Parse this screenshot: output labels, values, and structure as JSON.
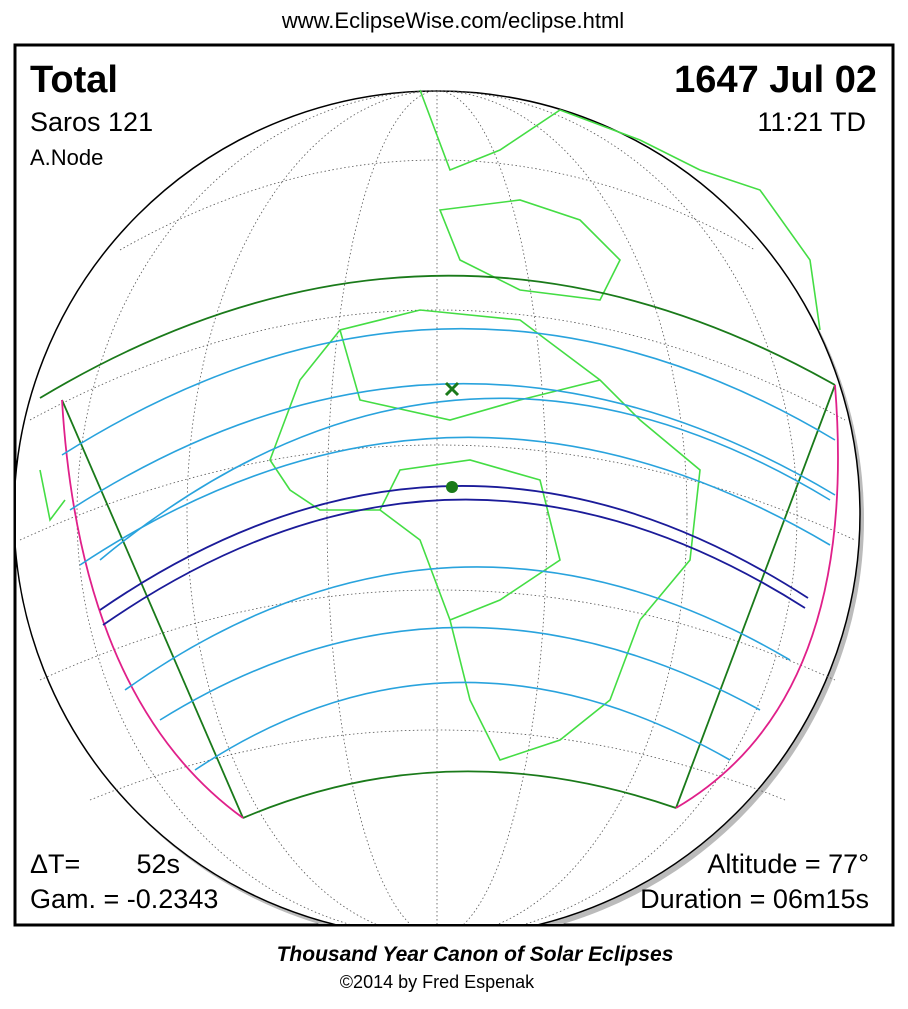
{
  "header": {
    "url": "www.EclipseWise.com/eclipse.html"
  },
  "top_left": {
    "type": "Total",
    "saros": "Saros 121",
    "node": "A.Node"
  },
  "top_right": {
    "date": "1647 Jul 02",
    "time": "11:21 TD"
  },
  "bottom_left": {
    "delta_t_label": "ΔT=",
    "delta_t_value": "52s",
    "gamma": "Gam. = -0.2343"
  },
  "bottom_right": {
    "altitude": "Altitude = 77°",
    "duration": "Duration = 06m15s"
  },
  "footer": {
    "title": "Thousand Year Canon of Solar Eclipses",
    "credit": "©2014 by Fred Espenak"
  }
}
